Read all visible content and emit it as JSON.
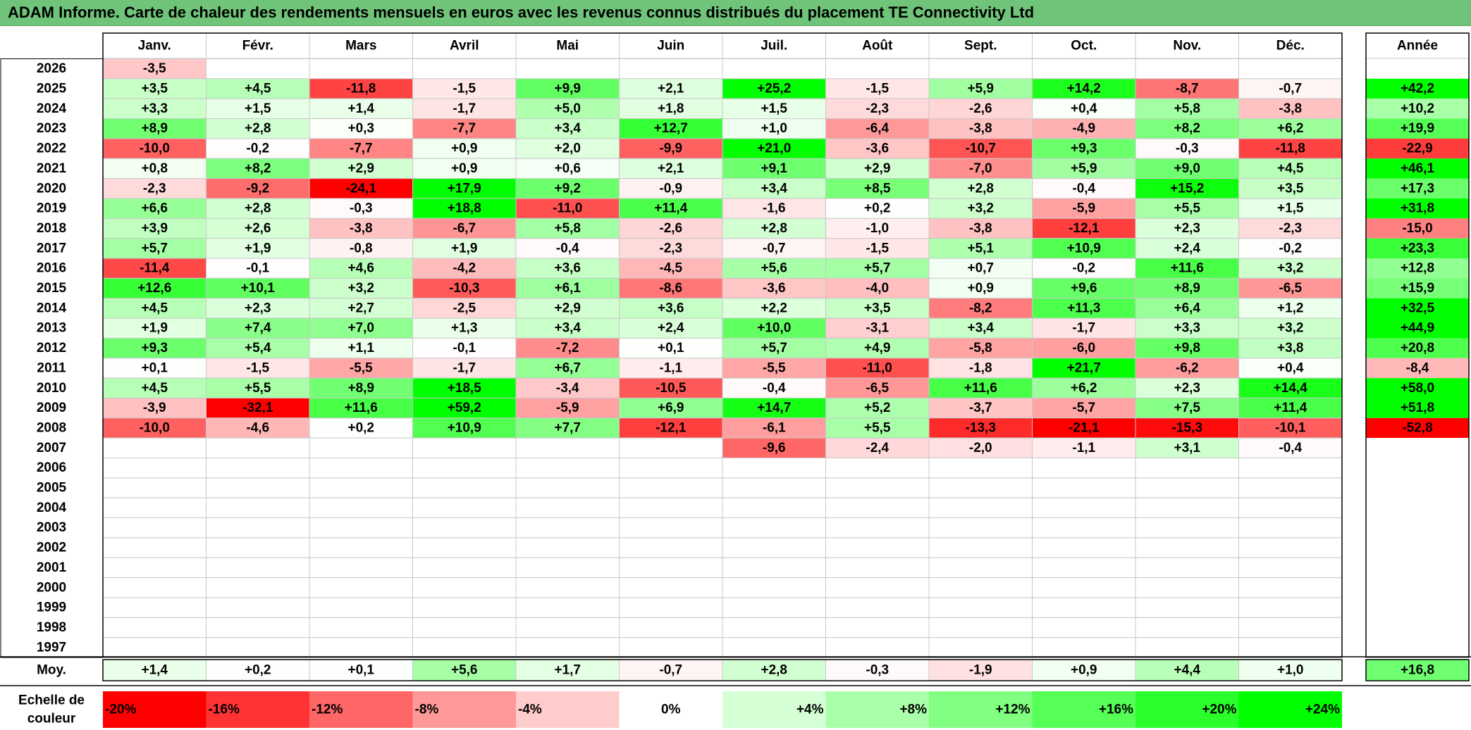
{
  "title": "ADAM Informe. Carte de chaleur des rendements mensuels en euros avec les revenus connus distribués du placement TE Connectivity Ltd",
  "chart_data": {
    "type": "heatmap",
    "title": "ADAM Informe. Carte de chaleur des rendements mensuels en euros avec les revenus connus distribués du placement TE Connectivity Ltd",
    "columns": [
      "Janv.",
      "Févr.",
      "Mars",
      "Avril",
      "Mai",
      "Juin",
      "Juil.",
      "Août",
      "Sept.",
      "Oct.",
      "Nov.",
      "Déc."
    ],
    "year_column_label": "Année",
    "average_label": "Moy.",
    "rows": [
      {
        "year": "2026",
        "values": [
          "-3,5",
          "",
          "",
          "",
          "",
          "",
          "",
          "",
          "",
          "",
          "",
          ""
        ],
        "annual": ""
      },
      {
        "year": "2025",
        "values": [
          "+3,5",
          "+4,5",
          "-11,8",
          "-1,5",
          "+9,9",
          "+2,1",
          "+25,2",
          "-1,5",
          "+5,9",
          "+14,2",
          "-8,7",
          "-0,7"
        ],
        "annual": "+42,2"
      },
      {
        "year": "2024",
        "values": [
          "+3,3",
          "+1,5",
          "+1,4",
          "-1,7",
          "+5,0",
          "+1,8",
          "+1,5",
          "-2,3",
          "-2,6",
          "+0,4",
          "+5,8",
          "-3,8"
        ],
        "annual": "+10,2"
      },
      {
        "year": "2023",
        "values": [
          "+8,9",
          "+2,8",
          "+0,3",
          "-7,7",
          "+3,4",
          "+12,7",
          "+1,0",
          "-6,4",
          "-3,8",
          "-4,9",
          "+8,2",
          "+6,2"
        ],
        "annual": "+19,9"
      },
      {
        "year": "2022",
        "values": [
          "-10,0",
          "-0,2",
          "-7,7",
          "+0,9",
          "+2,0",
          "-9,9",
          "+21,0",
          "-3,6",
          "-10,7",
          "+9,3",
          "-0,3",
          "-11,8"
        ],
        "annual": "-22,9"
      },
      {
        "year": "2021",
        "values": [
          "+0,8",
          "+8,2",
          "+2,9",
          "+0,9",
          "+0,6",
          "+2,1",
          "+9,1",
          "+2,9",
          "-7,0",
          "+5,9",
          "+9,0",
          "+4,5"
        ],
        "annual": "+46,1"
      },
      {
        "year": "2020",
        "values": [
          "-2,3",
          "-9,2",
          "-24,1",
          "+17,9",
          "+9,2",
          "-0,9",
          "+3,4",
          "+8,5",
          "+2,8",
          "-0,4",
          "+15,2",
          "+3,5"
        ],
        "annual": "+17,3"
      },
      {
        "year": "2019",
        "values": [
          "+6,6",
          "+2,8",
          "-0,3",
          "+18,8",
          "-11,0",
          "+11,4",
          "-1,6",
          "+0,2",
          "+3,2",
          "-5,9",
          "+5,5",
          "+1,5"
        ],
        "annual": "+31,8"
      },
      {
        "year": "2018",
        "values": [
          "+3,9",
          "+2,6",
          "-3,8",
          "-6,7",
          "+5,8",
          "-2,6",
          "+2,8",
          "-1,0",
          "-3,8",
          "-12,1",
          "+2,3",
          "-2,3"
        ],
        "annual": "-15,0"
      },
      {
        "year": "2017",
        "values": [
          "+5,7",
          "+1,9",
          "-0,8",
          "+1,9",
          "-0,4",
          "-2,3",
          "-0,7",
          "-1,5",
          "+5,1",
          "+10,9",
          "+2,4",
          "-0,2"
        ],
        "annual": "+23,3"
      },
      {
        "year": "2016",
        "values": [
          "-11,4",
          "-0,1",
          "+4,6",
          "-4,2",
          "+3,6",
          "-4,5",
          "+5,6",
          "+5,7",
          "+0,7",
          "-0,2",
          "+11,6",
          "+3,2"
        ],
        "annual": "+12,8"
      },
      {
        "year": "2015",
        "values": [
          "+12,6",
          "+10,1",
          "+3,2",
          "-10,3",
          "+6,1",
          "-8,6",
          "-3,6",
          "-4,0",
          "+0,9",
          "+9,6",
          "+8,9",
          "-6,5"
        ],
        "annual": "+15,9"
      },
      {
        "year": "2014",
        "values": [
          "+4,5",
          "+2,3",
          "+2,7",
          "-2,5",
          "+2,9",
          "+3,6",
          "+2,2",
          "+3,5",
          "-8,2",
          "+11,3",
          "+6,4",
          "+1,2"
        ],
        "annual": "+32,5"
      },
      {
        "year": "2013",
        "values": [
          "+1,9",
          "+7,4",
          "+7,0",
          "+1,3",
          "+3,4",
          "+2,4",
          "+10,0",
          "-3,1",
          "+3,4",
          "-1,7",
          "+3,3",
          "+3,2"
        ],
        "annual": "+44,9"
      },
      {
        "year": "2012",
        "values": [
          "+9,3",
          "+5,4",
          "+1,1",
          "-0,1",
          "-7,2",
          "+0,1",
          "+5,7",
          "+4,9",
          "-5,8",
          "-6,0",
          "+9,8",
          "+3,8"
        ],
        "annual": "+20,8"
      },
      {
        "year": "2011",
        "values": [
          "+0,1",
          "-1,5",
          "-5,5",
          "-1,7",
          "+6,7",
          "-1,1",
          "-5,5",
          "-11,0",
          "-1,8",
          "+21,7",
          "-6,2",
          "+0,4"
        ],
        "annual": "-8,4"
      },
      {
        "year": "2010",
        "values": [
          "+4,5",
          "+5,5",
          "+8,9",
          "+18,5",
          "-3,4",
          "-10,5",
          "-0,4",
          "-6,5",
          "+11,6",
          "+6,2",
          "+2,3",
          "+14,4"
        ],
        "annual": "+58,0"
      },
      {
        "year": "2009",
        "values": [
          "-3,9",
          "-32,1",
          "+11,6",
          "+59,2",
          "-5,9",
          "+6,9",
          "+14,7",
          "+5,2",
          "-3,7",
          "-5,7",
          "+7,5",
          "+11,4"
        ],
        "annual": "+51,8"
      },
      {
        "year": "2008",
        "values": [
          "-10,0",
          "-4,6",
          "+0,2",
          "+10,9",
          "+7,7",
          "-12,1",
          "-6,1",
          "+5,5",
          "-13,3",
          "-21,1",
          "-15,3",
          "-10,1"
        ],
        "annual": "-52,8"
      },
      {
        "year": "2007",
        "values": [
          "",
          "",
          "",
          "",
          "",
          "",
          "-9,6",
          "-2,4",
          "-2,0",
          "-1,1",
          "+3,1",
          "-0,4"
        ],
        "annual": ""
      },
      {
        "year": "2006",
        "values": [
          "",
          "",
          "",
          "",
          "",
          "",
          "",
          "",
          "",
          "",
          "",
          ""
        ],
        "annual": ""
      },
      {
        "year": "2005",
        "values": [
          "",
          "",
          "",
          "",
          "",
          "",
          "",
          "",
          "",
          "",
          "",
          ""
        ],
        "annual": ""
      },
      {
        "year": "2004",
        "values": [
          "",
          "",
          "",
          "",
          "",
          "",
          "",
          "",
          "",
          "",
          "",
          ""
        ],
        "annual": ""
      },
      {
        "year": "2003",
        "values": [
          "",
          "",
          "",
          "",
          "",
          "",
          "",
          "",
          "",
          "",
          "",
          ""
        ],
        "annual": ""
      },
      {
        "year": "2002",
        "values": [
          "",
          "",
          "",
          "",
          "",
          "",
          "",
          "",
          "",
          "",
          "",
          ""
        ],
        "annual": ""
      },
      {
        "year": "2001",
        "values": [
          "",
          "",
          "",
          "",
          "",
          "",
          "",
          "",
          "",
          "",
          "",
          ""
        ],
        "annual": ""
      },
      {
        "year": "2000",
        "values": [
          "",
          "",
          "",
          "",
          "",
          "",
          "",
          "",
          "",
          "",
          "",
          ""
        ],
        "annual": ""
      },
      {
        "year": "1999",
        "values": [
          "",
          "",
          "",
          "",
          "",
          "",
          "",
          "",
          "",
          "",
          "",
          ""
        ],
        "annual": ""
      },
      {
        "year": "1998",
        "values": [
          "",
          "",
          "",
          "",
          "",
          "",
          "",
          "",
          "",
          "",
          "",
          ""
        ],
        "annual": ""
      },
      {
        "year": "1997",
        "values": [
          "",
          "",
          "",
          "",
          "",
          "",
          "",
          "",
          "",
          "",
          "",
          ""
        ],
        "annual": ""
      }
    ],
    "averages": [
      "+1,4",
      "+0,2",
      "+0,1",
      "+5,6",
      "+1,7",
      "-0,7",
      "+2,8",
      "-0,3",
      "-1,9",
      "+0,9",
      "+4,4",
      "+1,0"
    ],
    "average_annual": "+16,8",
    "scale_label_lines": [
      "Echelle de",
      "couleur"
    ],
    "scale": [
      "-20%",
      "-16%",
      "-12%",
      "-8%",
      "-4%",
      "0%",
      "+4%",
      "+8%",
      "+12%",
      "+16%",
      "+20%",
      "+24%"
    ],
    "colors": {
      "negative_max": "#ff0000",
      "neutral": "#ffffff",
      "positive_max": "#00ff00",
      "title_bar": "#6fc47a",
      "grid_line": "#c8c8c8",
      "frame_line": "#000000"
    }
  }
}
